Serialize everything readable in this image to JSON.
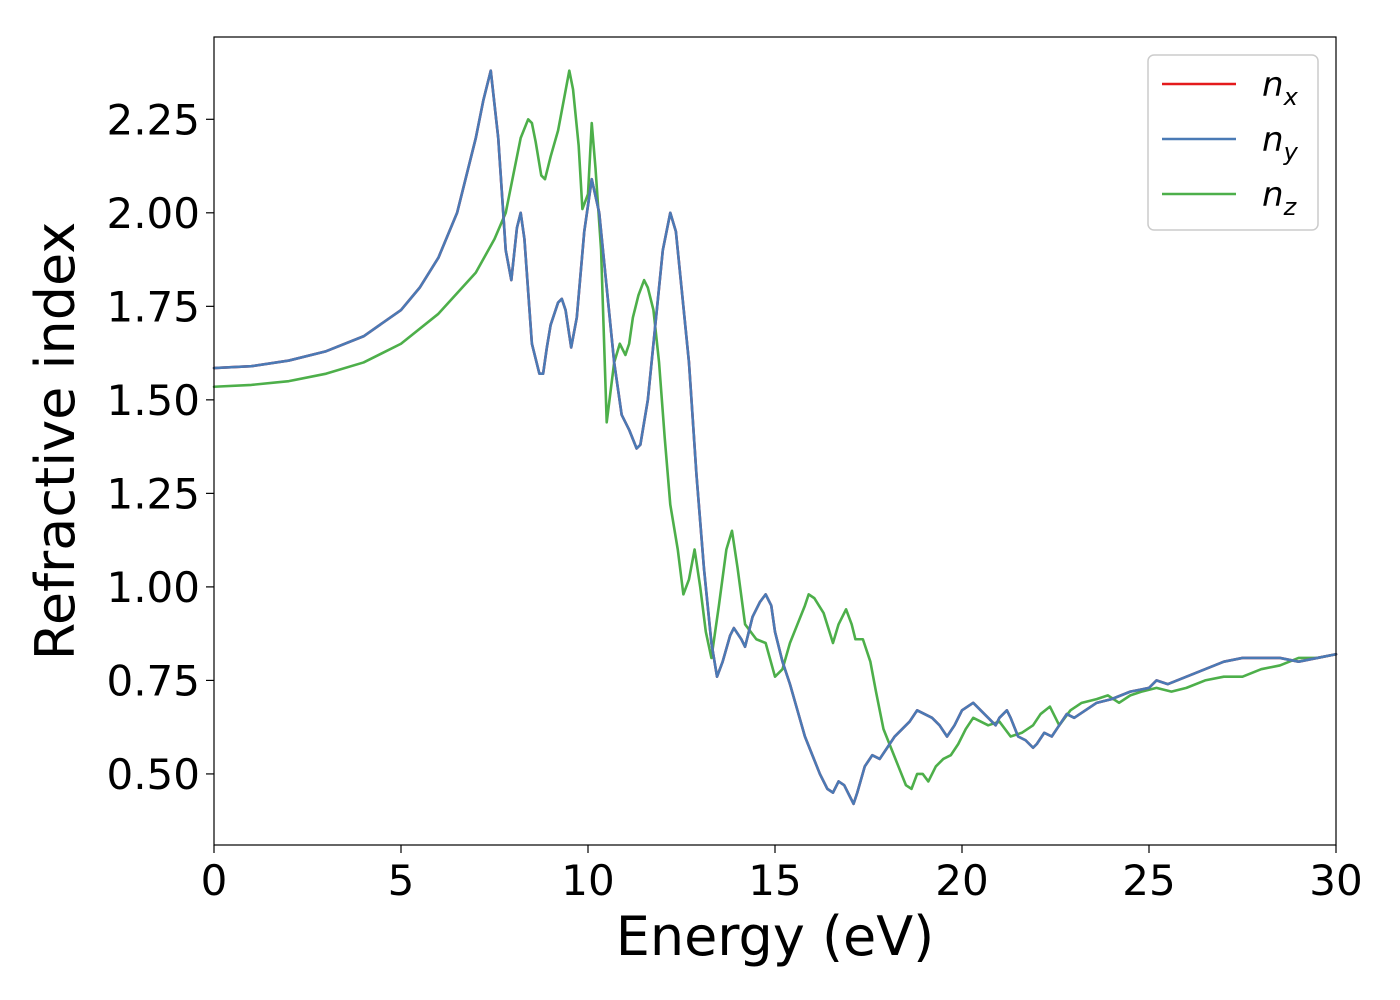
{
  "chart_data": {
    "type": "line",
    "title": "",
    "xlabel": "Energy (eV)",
    "ylabel": "Refractive index",
    "xlim": [
      0,
      30
    ],
    "ylim": [
      0.31,
      2.47
    ],
    "xticks": [
      0,
      5,
      10,
      15,
      20,
      25,
      30
    ],
    "xtick_labels": [
      "0",
      "5",
      "10",
      "15",
      "20",
      "25",
      "30"
    ],
    "yticks": [
      0.5,
      0.75,
      1.0,
      1.25,
      1.5,
      1.75,
      2.0,
      2.25
    ],
    "ytick_labels": [
      "0.50",
      "0.75",
      "1.00",
      "1.25",
      "1.50",
      "1.75",
      "2.00",
      "2.25"
    ],
    "grid": false,
    "legend_position": "top-right",
    "series": [
      {
        "name": "n_x",
        "legend_base": "n",
        "legend_sub": "x",
        "color": "#e41a1c",
        "x": [
          0,
          1,
          2,
          3,
          4,
          5,
          5.5,
          6,
          6.5,
          7,
          7.2,
          7.4,
          7.6,
          7.8,
          7.95,
          8.1,
          8.2,
          8.3,
          8.5,
          8.7,
          8.8,
          8.9,
          9.0,
          9.2,
          9.3,
          9.4,
          9.55,
          9.7,
          9.9,
          10.1,
          10.3,
          10.5,
          10.7,
          10.9,
          11.1,
          11.3,
          11.4,
          11.6,
          11.8,
          12.0,
          12.2,
          12.35,
          12.5,
          12.7,
          12.9,
          13.1,
          13.3,
          13.45,
          13.6,
          13.8,
          13.9,
          14.1,
          14.2,
          14.4,
          14.6,
          14.75,
          14.9,
          15.0,
          15.2,
          15.4,
          15.6,
          15.8,
          16.0,
          16.2,
          16.4,
          16.55,
          16.7,
          16.85,
          17.0,
          17.1,
          17.2,
          17.4,
          17.6,
          17.8,
          18.0,
          18.2,
          18.4,
          18.6,
          18.8,
          19.0,
          19.2,
          19.4,
          19.6,
          19.8,
          20.0,
          20.3,
          20.5,
          20.7,
          20.9,
          21.0,
          21.2,
          21.3,
          21.5,
          21.7,
          21.9,
          22.0,
          22.2,
          22.4,
          22.6,
          22.8,
          23.0,
          23.3,
          23.6,
          24.0,
          24.5,
          25.0,
          25.2,
          25.5,
          26.0,
          26.5,
          27.0,
          27.5,
          28.0,
          28.5,
          29.0,
          29.5,
          30.0
        ],
        "y": [
          1.585,
          1.59,
          1.605,
          1.63,
          1.67,
          1.74,
          1.8,
          1.88,
          2.0,
          2.2,
          2.3,
          2.38,
          2.2,
          1.9,
          1.82,
          1.96,
          2.0,
          1.93,
          1.65,
          1.57,
          1.57,
          1.64,
          1.7,
          1.76,
          1.77,
          1.74,
          1.64,
          1.72,
          1.95,
          2.09,
          2.0,
          1.8,
          1.6,
          1.46,
          1.42,
          1.37,
          1.38,
          1.5,
          1.7,
          1.9,
          2.0,
          1.95,
          1.8,
          1.6,
          1.3,
          1.05,
          0.85,
          0.76,
          0.8,
          0.87,
          0.89,
          0.86,
          0.84,
          0.92,
          0.96,
          0.98,
          0.95,
          0.88,
          0.8,
          0.74,
          0.67,
          0.6,
          0.55,
          0.5,
          0.46,
          0.45,
          0.48,
          0.47,
          0.44,
          0.42,
          0.45,
          0.52,
          0.55,
          0.54,
          0.57,
          0.6,
          0.62,
          0.64,
          0.67,
          0.66,
          0.65,
          0.63,
          0.6,
          0.63,
          0.67,
          0.69,
          0.67,
          0.65,
          0.63,
          0.65,
          0.67,
          0.65,
          0.6,
          0.59,
          0.57,
          0.58,
          0.61,
          0.6,
          0.63,
          0.66,
          0.65,
          0.67,
          0.69,
          0.7,
          0.72,
          0.73,
          0.75,
          0.74,
          0.76,
          0.78,
          0.8,
          0.81,
          0.81,
          0.81,
          0.8,
          0.81,
          0.82
        ]
      },
      {
        "name": "n_y",
        "legend_base": "n",
        "legend_sub": "y",
        "color": "#4a7ab5",
        "x": [
          0,
          1,
          2,
          3,
          4,
          5,
          5.5,
          6,
          6.5,
          7,
          7.2,
          7.4,
          7.6,
          7.8,
          7.95,
          8.1,
          8.2,
          8.3,
          8.5,
          8.7,
          8.8,
          8.9,
          9.0,
          9.2,
          9.3,
          9.4,
          9.55,
          9.7,
          9.9,
          10.1,
          10.3,
          10.5,
          10.7,
          10.9,
          11.1,
          11.3,
          11.4,
          11.6,
          11.8,
          12.0,
          12.2,
          12.35,
          12.5,
          12.7,
          12.9,
          13.1,
          13.3,
          13.45,
          13.6,
          13.8,
          13.9,
          14.1,
          14.2,
          14.4,
          14.6,
          14.75,
          14.9,
          15.0,
          15.2,
          15.4,
          15.6,
          15.8,
          16.0,
          16.2,
          16.4,
          16.55,
          16.7,
          16.85,
          17.0,
          17.1,
          17.2,
          17.4,
          17.6,
          17.8,
          18.0,
          18.2,
          18.4,
          18.6,
          18.8,
          19.0,
          19.2,
          19.4,
          19.6,
          19.8,
          20.0,
          20.3,
          20.5,
          20.7,
          20.9,
          21.0,
          21.2,
          21.3,
          21.5,
          21.7,
          21.9,
          22.0,
          22.2,
          22.4,
          22.6,
          22.8,
          23.0,
          23.3,
          23.6,
          24.0,
          24.5,
          25.0,
          25.2,
          25.5,
          26.0,
          26.5,
          27.0,
          27.5,
          28.0,
          28.5,
          29.0,
          29.5,
          30.0
        ],
        "y": [
          1.585,
          1.59,
          1.605,
          1.63,
          1.67,
          1.74,
          1.8,
          1.88,
          2.0,
          2.2,
          2.3,
          2.38,
          2.2,
          1.9,
          1.82,
          1.96,
          2.0,
          1.93,
          1.65,
          1.57,
          1.57,
          1.64,
          1.7,
          1.76,
          1.77,
          1.74,
          1.64,
          1.72,
          1.95,
          2.09,
          2.0,
          1.8,
          1.6,
          1.46,
          1.42,
          1.37,
          1.38,
          1.5,
          1.7,
          1.9,
          2.0,
          1.95,
          1.8,
          1.6,
          1.3,
          1.05,
          0.85,
          0.76,
          0.8,
          0.87,
          0.89,
          0.86,
          0.84,
          0.92,
          0.96,
          0.98,
          0.95,
          0.88,
          0.8,
          0.74,
          0.67,
          0.6,
          0.55,
          0.5,
          0.46,
          0.45,
          0.48,
          0.47,
          0.44,
          0.42,
          0.45,
          0.52,
          0.55,
          0.54,
          0.57,
          0.6,
          0.62,
          0.64,
          0.67,
          0.66,
          0.65,
          0.63,
          0.6,
          0.63,
          0.67,
          0.69,
          0.67,
          0.65,
          0.63,
          0.65,
          0.67,
          0.65,
          0.6,
          0.59,
          0.57,
          0.58,
          0.61,
          0.6,
          0.63,
          0.66,
          0.65,
          0.67,
          0.69,
          0.7,
          0.72,
          0.73,
          0.75,
          0.74,
          0.76,
          0.78,
          0.8,
          0.81,
          0.81,
          0.81,
          0.8,
          0.81,
          0.82
        ]
      },
      {
        "name": "n_z",
        "legend_base": "n",
        "legend_sub": "z",
        "color": "#4daf4a",
        "x": [
          0,
          1,
          2,
          3,
          4,
          5,
          6,
          7,
          7.5,
          7.8,
          8.0,
          8.2,
          8.4,
          8.5,
          8.6,
          8.75,
          8.85,
          9.0,
          9.2,
          9.35,
          9.5,
          9.6,
          9.75,
          9.85,
          10.0,
          10.1,
          10.2,
          10.35,
          10.5,
          10.7,
          10.85,
          11.0,
          11.1,
          11.2,
          11.35,
          11.5,
          11.6,
          11.75,
          11.9,
          12.05,
          12.2,
          12.4,
          12.55,
          12.7,
          12.85,
          13.0,
          13.15,
          13.3,
          13.5,
          13.7,
          13.85,
          14.0,
          14.2,
          14.5,
          14.75,
          15.0,
          15.2,
          15.4,
          15.6,
          15.8,
          15.9,
          16.05,
          16.3,
          16.55,
          16.7,
          16.9,
          17.05,
          17.15,
          17.35,
          17.55,
          17.7,
          17.9,
          18.1,
          18.3,
          18.5,
          18.65,
          18.8,
          18.95,
          19.1,
          19.3,
          19.5,
          19.7,
          19.9,
          20.1,
          20.3,
          20.5,
          20.7,
          21.0,
          21.3,
          21.6,
          21.9,
          22.1,
          22.35,
          22.6,
          22.9,
          23.2,
          23.6,
          23.9,
          24.2,
          24.5,
          24.8,
          25.2,
          25.6,
          26.0,
          26.5,
          27.0,
          27.5,
          28.0,
          28.5,
          29.0,
          29.5,
          30.0
        ],
        "y": [
          1.535,
          1.54,
          1.55,
          1.57,
          1.6,
          1.65,
          1.73,
          1.84,
          1.93,
          2.0,
          2.1,
          2.2,
          2.25,
          2.24,
          2.19,
          2.1,
          2.09,
          2.15,
          2.22,
          2.3,
          2.38,
          2.33,
          2.18,
          2.01,
          2.05,
          2.24,
          2.12,
          1.9,
          1.44,
          1.6,
          1.65,
          1.62,
          1.65,
          1.72,
          1.78,
          1.82,
          1.8,
          1.74,
          1.6,
          1.4,
          1.22,
          1.1,
          0.98,
          1.02,
          1.1,
          1.0,
          0.88,
          0.81,
          0.95,
          1.1,
          1.15,
          1.05,
          0.9,
          0.86,
          0.85,
          0.76,
          0.78,
          0.85,
          0.9,
          0.95,
          0.98,
          0.97,
          0.93,
          0.85,
          0.9,
          0.94,
          0.9,
          0.86,
          0.86,
          0.8,
          0.72,
          0.62,
          0.57,
          0.52,
          0.47,
          0.46,
          0.5,
          0.5,
          0.48,
          0.52,
          0.54,
          0.55,
          0.58,
          0.62,
          0.65,
          0.64,
          0.63,
          0.64,
          0.6,
          0.61,
          0.63,
          0.66,
          0.68,
          0.63,
          0.67,
          0.69,
          0.7,
          0.71,
          0.69,
          0.71,
          0.72,
          0.73,
          0.72,
          0.73,
          0.75,
          0.76,
          0.76,
          0.78,
          0.79,
          0.81,
          0.81,
          0.82
        ]
      }
    ]
  }
}
